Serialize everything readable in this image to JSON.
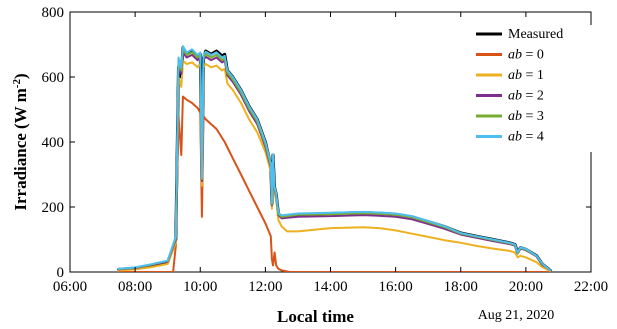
{
  "chart_data": {
    "type": "line",
    "xlabel": "Local time",
    "ylabel_main": "Irradiance (W m",
    "ylabel_sup": "-2",
    "ylabel_close": ")",
    "date_note": "Aug 21, 2020",
    "xlim": [
      "06:00",
      "22:00"
    ],
    "ylim": [
      0,
      800
    ],
    "x_ticks": [
      "06:00",
      "08:00",
      "10:00",
      "12:00",
      "14:00",
      "16:00",
      "18:00",
      "20:00",
      "22:00"
    ],
    "y_ticks": [
      0,
      200,
      400,
      600,
      800
    ],
    "grid": false,
    "legend_position": "top-right",
    "colors": {
      "Measured": "#000000",
      "ab0": "#d95319",
      "ab1": "#edb120",
      "ab2": "#7e2f8e",
      "ab3": "#77ac30",
      "ab4": "#4dbeee"
    },
    "series": [
      {
        "name": "Measured",
        "legend_italic": "",
        "legend_rest": "Measured",
        "color_key": "Measured",
        "x": [
          "07:30",
          "08:00",
          "08:30",
          "09:00",
          "09:15",
          "09:20",
          "09:25",
          "09:28",
          "09:35",
          "09:45",
          "09:55",
          "10:00",
          "10:03",
          "10:06",
          "10:10",
          "10:20",
          "10:30",
          "10:40",
          "10:45",
          "10:50",
          "11:00",
          "11:15",
          "11:30",
          "11:45",
          "12:00",
          "12:10",
          "12:12",
          "12:14",
          "12:17",
          "12:20",
          "12:24",
          "12:30",
          "12:40",
          "13:00",
          "14:00",
          "15:00",
          "15:30",
          "16:00",
          "16:30",
          "17:00",
          "17:30",
          "18:00",
          "18:30",
          "19:00",
          "19:30",
          "19:40",
          "19:45",
          "19:50",
          "20:00",
          "20:20",
          "20:30",
          "20:45"
        ],
        "y": [
          8,
          12,
          20,
          30,
          100,
          630,
          600,
          690,
          670,
          680,
          665,
          670,
          285,
          660,
          680,
          670,
          680,
          665,
          670,
          620,
          600,
          560,
          510,
          470,
          400,
          330,
          210,
          360,
          260,
          240,
          180,
          170,
          172,
          175,
          180,
          183,
          181,
          178,
          170,
          155,
          140,
          120,
          110,
          100,
          90,
          85,
          60,
          75,
          70,
          50,
          25,
          5
        ]
      },
      {
        "name": "ab = 0",
        "legend_italic": "ab",
        "legend_rest": " = 0",
        "color_key": "ab0",
        "x": [
          "07:30",
          "08:00",
          "09:00",
          "09:10",
          "09:15",
          "09:20",
          "09:25",
          "09:28",
          "09:35",
          "09:45",
          "09:55",
          "10:00",
          "10:03",
          "10:06",
          "10:10",
          "10:30",
          "10:45",
          "11:00",
          "11:15",
          "11:30",
          "11:45",
          "12:00",
          "12:10",
          "12:12",
          "12:14",
          "12:17",
          "12:20",
          "12:24",
          "12:30",
          "12:45",
          "13:00",
          "14:00",
          "16:00",
          "18:00",
          "20:00",
          "20:45"
        ],
        "y": [
          0,
          0,
          0,
          0,
          80,
          480,
          360,
          540,
          530,
          520,
          505,
          490,
          170,
          480,
          470,
          440,
          400,
          350,
          300,
          250,
          200,
          150,
          110,
          40,
          20,
          60,
          20,
          10,
          5,
          0,
          0,
          0,
          0,
          0,
          0,
          0
        ]
      },
      {
        "name": "ab = 1",
        "legend_italic": "ab",
        "legend_rest": " = 1",
        "color_key": "ab1",
        "x": [
          "07:30",
          "08:00",
          "08:30",
          "09:00",
          "09:15",
          "09:20",
          "09:25",
          "09:28",
          "09:35",
          "09:45",
          "09:55",
          "10:00",
          "10:03",
          "10:06",
          "10:10",
          "10:20",
          "10:30",
          "10:40",
          "10:45",
          "10:50",
          "11:00",
          "11:15",
          "11:30",
          "11:45",
          "12:00",
          "12:10",
          "12:12",
          "12:14",
          "12:17",
          "12:20",
          "12:24",
          "12:30",
          "12:40",
          "13:00",
          "14:00",
          "15:00",
          "15:30",
          "16:00",
          "16:30",
          "17:00",
          "17:30",
          "18:00",
          "18:30",
          "19:00",
          "19:30",
          "19:40",
          "19:45",
          "19:50",
          "20:00",
          "20:20",
          "20:30",
          "20:45"
        ],
        "y": [
          5,
          8,
          15,
          25,
          90,
          600,
          570,
          650,
          640,
          645,
          630,
          640,
          265,
          630,
          640,
          630,
          635,
          620,
          625,
          580,
          560,
          520,
          470,
          430,
          370,
          310,
          195,
          330,
          240,
          220,
          160,
          140,
          125,
          125,
          135,
          138,
          135,
          128,
          118,
          108,
          98,
          90,
          80,
          72,
          65,
          60,
          45,
          50,
          45,
          30,
          15,
          3
        ]
      },
      {
        "name": "ab = 2",
        "legend_italic": "ab",
        "legend_rest": " = 2",
        "color_key": "ab2",
        "x": [
          "07:30",
          "08:00",
          "08:30",
          "09:00",
          "09:15",
          "09:20",
          "09:25",
          "09:28",
          "09:35",
          "09:45",
          "09:55",
          "10:00",
          "10:03",
          "10:06",
          "10:10",
          "10:20",
          "10:30",
          "10:40",
          "10:45",
          "10:50",
          "11:00",
          "11:15",
          "11:30",
          "11:45",
          "12:00",
          "12:10",
          "12:12",
          "12:14",
          "12:17",
          "12:20",
          "12:24",
          "12:30",
          "12:40",
          "13:00",
          "14:00",
          "15:00",
          "15:30",
          "16:00",
          "16:30",
          "17:00",
          "17:30",
          "18:00",
          "18:30",
          "19:00",
          "19:30",
          "19:40",
          "19:45",
          "19:50",
          "20:00",
          "20:20",
          "20:30",
          "20:45"
        ],
        "y": [
          8,
          12,
          22,
          32,
          100,
          640,
          610,
          675,
          660,
          668,
          652,
          660,
          280,
          652,
          662,
          652,
          660,
          645,
          650,
          605,
          585,
          545,
          495,
          455,
          385,
          322,
          205,
          350,
          253,
          233,
          175,
          165,
          167,
          170,
          172,
          175,
          173,
          170,
          162,
          148,
          133,
          115,
          105,
          95,
          86,
          81,
          57,
          72,
          67,
          48,
          24,
          5
        ]
      },
      {
        "name": "ab = 3",
        "legend_italic": "ab",
        "legend_rest": " = 3",
        "color_key": "ab3",
        "x": [
          "07:30",
          "08:00",
          "08:30",
          "09:00",
          "09:15",
          "09:20",
          "09:25",
          "09:28",
          "09:35",
          "09:45",
          "09:55",
          "10:00",
          "10:03",
          "10:06",
          "10:10",
          "10:20",
          "10:30",
          "10:40",
          "10:45",
          "10:50",
          "11:00",
          "11:15",
          "11:30",
          "11:45",
          "12:00",
          "12:10",
          "12:12",
          "12:14",
          "12:17",
          "12:20",
          "12:24",
          "12:30",
          "12:40",
          "13:00",
          "14:00",
          "15:00",
          "15:30",
          "16:00",
          "16:30",
          "17:00",
          "17:30",
          "18:00",
          "18:30",
          "19:00",
          "19:30",
          "19:40",
          "19:45",
          "19:50",
          "20:00",
          "20:20",
          "20:30",
          "20:45"
        ],
        "y": [
          9,
          13,
          23,
          34,
          105,
          650,
          620,
          685,
          668,
          676,
          660,
          668,
          285,
          660,
          670,
          660,
          668,
          652,
          657,
          612,
          592,
          552,
          502,
          462,
          392,
          328,
          208,
          355,
          257,
          237,
          178,
          170,
          172,
          176,
          178,
          181,
          179,
          176,
          168,
          153,
          138,
          118,
          108,
          98,
          88,
          83,
          58,
          74,
          69,
          49,
          25,
          5
        ]
      },
      {
        "name": "ab = 4",
        "legend_italic": "ab",
        "legend_rest": " = 4",
        "color_key": "ab4",
        "x": [
          "07:30",
          "08:00",
          "08:30",
          "09:00",
          "09:15",
          "09:20",
          "09:25",
          "09:28",
          "09:35",
          "09:45",
          "09:55",
          "10:00",
          "10:03",
          "10:06",
          "10:10",
          "10:20",
          "10:30",
          "10:40",
          "10:45",
          "10:50",
          "11:00",
          "11:15",
          "11:30",
          "11:45",
          "12:00",
          "12:10",
          "12:12",
          "12:14",
          "12:17",
          "12:20",
          "12:24",
          "12:30",
          "12:40",
          "13:00",
          "14:00",
          "15:00",
          "15:30",
          "16:00",
          "16:30",
          "17:00",
          "17:30",
          "18:00",
          "18:30",
          "19:00",
          "19:30",
          "19:40",
          "19:45",
          "19:50",
          "20:00",
          "20:20",
          "20:30",
          "20:45"
        ],
        "y": [
          10,
          14,
          24,
          35,
          110,
          660,
          630,
          695,
          675,
          685,
          668,
          675,
          290,
          668,
          678,
          668,
          676,
          660,
          665,
          620,
          600,
          560,
          510,
          470,
          400,
          335,
          212,
          362,
          262,
          242,
          182,
          174,
          176,
          180,
          182,
          185,
          183,
          180,
          172,
          157,
          141,
          120,
          110,
          100,
          90,
          85,
          60,
          76,
          71,
          50,
          26,
          5
        ]
      }
    ]
  }
}
